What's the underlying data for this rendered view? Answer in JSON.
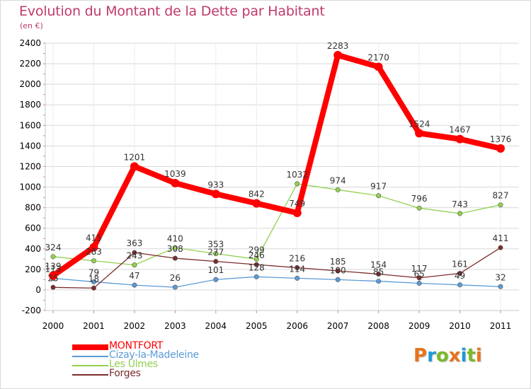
{
  "title": "Evolution du Montant de la Dette par Habitant",
  "subtitle": "(en €)",
  "brand": {
    "text": "Proxiti",
    "letter_colors": [
      "#e8731c",
      "#1f9ad6",
      "#7ab929",
      "#e8731c",
      "#1f9ad6",
      "#7ab929",
      "#e8731c"
    ]
  },
  "chart_data": {
    "type": "line",
    "x": [
      "2000",
      "2001",
      "2002",
      "2003",
      "2004",
      "2005",
      "2006",
      "2007",
      "2008",
      "2009",
      "2010",
      "2011"
    ],
    "ylim": [
      -200,
      2400
    ],
    "yticks": [
      -200,
      0,
      200,
      400,
      600,
      800,
      1000,
      1200,
      1400,
      1600,
      1800,
      2000,
      2200,
      2400
    ],
    "grid": true,
    "legend_position": "bottom-left",
    "series": [
      {
        "name": "MONTFORT",
        "color": "#ff0000",
        "values": [
          139,
          415,
          1201,
          1039,
          933,
          842,
          749,
          2283,
          2170,
          1524,
          1467,
          1376
        ],
        "labels": [
          "139",
          "415",
          "1201",
          "1039",
          "933",
          "842",
          "749",
          "2283",
          "2170",
          "1524",
          "1467",
          "1376"
        ]
      },
      {
        "name": "Cizay-la-Madeleine",
        "color": "#5b9bd5",
        "values": [
          113,
          79,
          47,
          26,
          101,
          128,
          114,
          100,
          85,
          65,
          49,
          32
        ],
        "labels": [
          "113",
          "79",
          "47",
          "26",
          "101",
          "128",
          "114",
          "100",
          "85",
          "65",
          "49",
          "32"
        ]
      },
      {
        "name": "Les Ulmes",
        "color": "#92d050",
        "values": [
          324,
          283,
          243,
          410,
          353,
          299,
          1032,
          974,
          917,
          796,
          743,
          827
        ],
        "labels": [
          "324",
          "283",
          "243",
          "410",
          "353",
          "299",
          "1032",
          "974",
          "917",
          "796",
          "743",
          "827"
        ]
      },
      {
        "name": "Forges",
        "color": "#7b2c2c",
        "values": [
          25,
          18,
          363,
          308,
          277,
          246,
          216,
          185,
          154,
          117,
          161,
          411
        ],
        "labels": [
          "25",
          "18",
          "363",
          "308",
          "277",
          "246",
          "216",
          "185",
          "154",
          "117",
          "161",
          "411"
        ]
      }
    ]
  }
}
